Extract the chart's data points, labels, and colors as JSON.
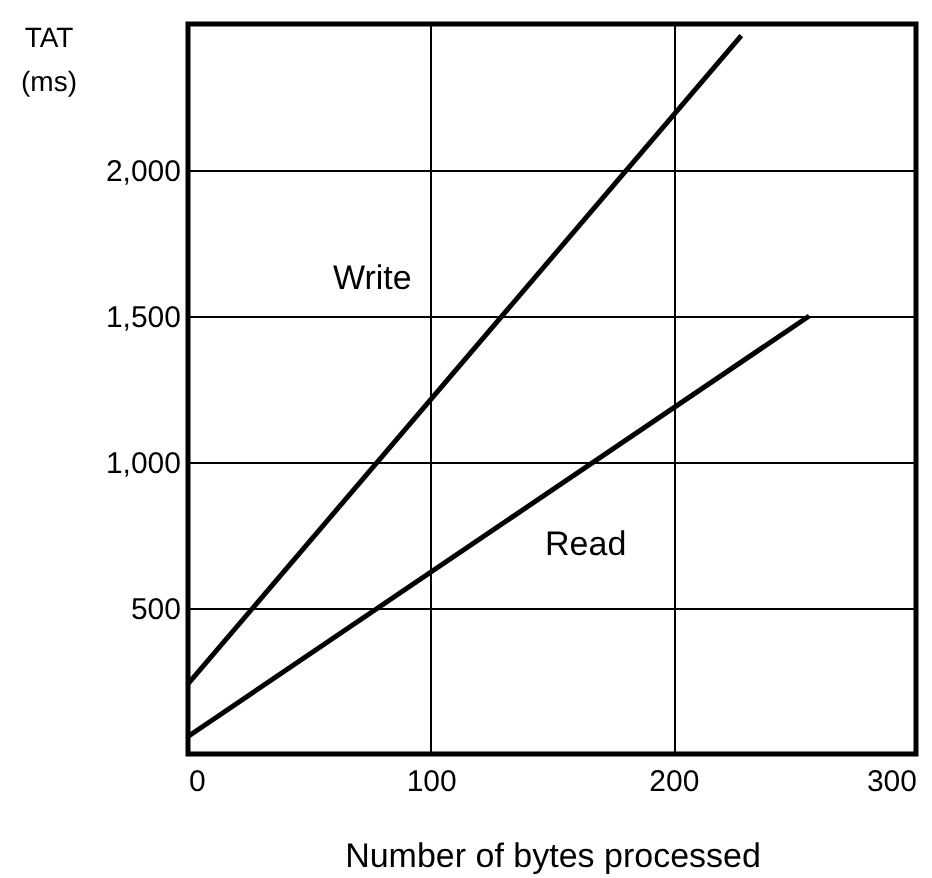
{
  "chart_data": {
    "type": "line",
    "xlabel": "Number of bytes processed",
    "ylabel": "TAT (ms)",
    "series": [
      {
        "name": "Write",
        "color": "#000000",
        "x": [
          0,
          228
        ],
        "values": [
          240,
          2460
        ]
      },
      {
        "name": "Read",
        "color": "#000000",
        "x": [
          0,
          256
        ],
        "values": [
          60,
          1500
        ]
      }
    ],
    "xlim": [
      0,
      300
    ],
    "xticks": [
      0,
      100,
      200,
      300
    ],
    "ylim": [
      0,
      2500
    ],
    "yticks": [
      500,
      {
        "value": 1000,
        "label": "1,000"
      },
      {
        "value": 1500,
        "label": "1,500"
      },
      {
        "value": 2000,
        "label": "2,000"
      }
    ],
    "grid": true,
    "marker": "none",
    "line_style": "solid"
  }
}
